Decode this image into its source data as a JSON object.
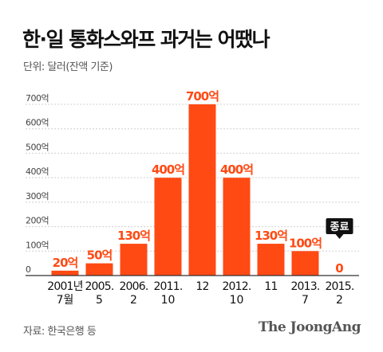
{
  "header": {
    "title": "한·일 통화스와프 과거는 어땠나",
    "unit": "단위: 달러(잔액 기준)"
  },
  "footer": {
    "source": "자료: 한국은행 등",
    "brand": "The JoongAng"
  },
  "colors": {
    "bar": "#ff4a14",
    "ended_badge_bg": "#111111",
    "grid": "#d0d0d0",
    "axis": "#333333"
  },
  "chart_data": {
    "type": "bar",
    "title": "한·일 통화스와프 과거는 어땠나",
    "ylabel": "",
    "xlabel": "",
    "ylim": [
      0,
      700
    ],
    "grid": true,
    "y_ticks": [
      {
        "value": 0,
        "label": "0"
      },
      {
        "value": 100,
        "label": "100억"
      },
      {
        "value": 200,
        "label": "200억"
      },
      {
        "value": 300,
        "label": "300억"
      },
      {
        "value": 400,
        "label": "400억"
      },
      {
        "value": 500,
        "label": "500억"
      },
      {
        "value": 600,
        "label": "600억"
      },
      {
        "value": 700,
        "label": "700억"
      }
    ],
    "categories": [
      {
        "line1": "2001년",
        "line2": "7월"
      },
      {
        "line1": "2005.",
        "line2": "5"
      },
      {
        "line1": "2006.",
        "line2": "2"
      },
      {
        "line1": "2011.",
        "line2": "10"
      },
      {
        "line1": "12",
        "line2": ""
      },
      {
        "line1": "2012.",
        "line2": "10"
      },
      {
        "line1": "11",
        "line2": ""
      },
      {
        "line1": "2013.",
        "line2": "7"
      },
      {
        "line1": "2015.",
        "line2": "2"
      }
    ],
    "values": [
      20,
      50,
      130,
      400,
      700,
      400,
      130,
      100,
      0
    ],
    "value_labels": [
      "20억",
      "50억",
      "130억",
      "400억",
      "700억",
      "400억",
      "130억",
      "100억",
      "0"
    ],
    "annotation": {
      "index": 8,
      "text": "종료"
    }
  }
}
